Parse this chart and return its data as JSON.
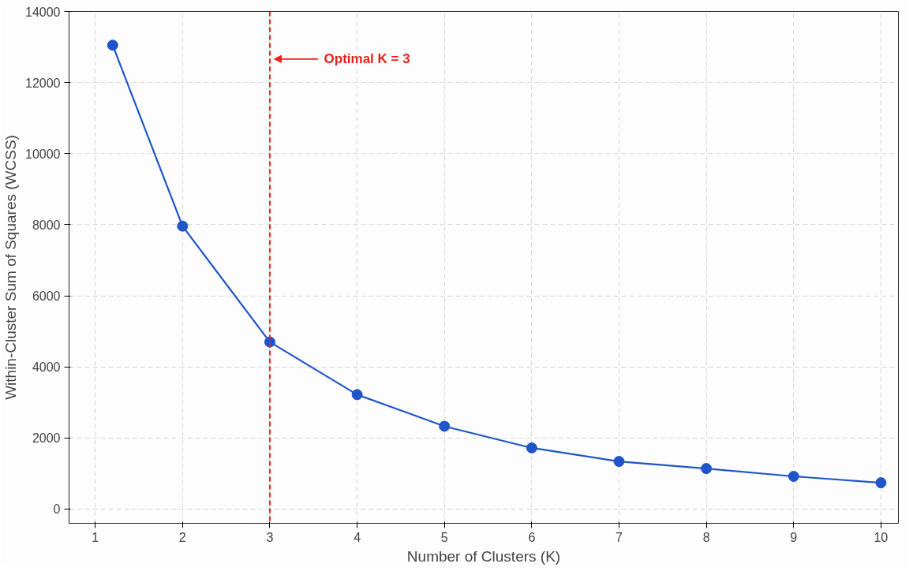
{
  "chart_data": {
    "type": "line",
    "xlabel": "Number of Clusters (K)",
    "ylabel": "Within-Cluster Sum of Squares (WCSS)",
    "series": [
      {
        "color": "#1f55c8",
        "x": [
          1.2,
          2,
          3,
          4,
          5,
          6,
          7,
          8,
          9,
          10
        ],
        "values": [
          13050,
          7960,
          4700,
          3220,
          2330,
          1720,
          1340,
          1140,
          920,
          740
        ]
      }
    ],
    "marker": "circle",
    "line_style": "solid",
    "xlim": [
      0.7,
      10.2
    ],
    "ylim": [
      -400,
      14000
    ],
    "xticks": [
      1,
      2,
      3,
      4,
      5,
      6,
      7,
      8,
      9,
      10
    ],
    "yticks": [
      0,
      2000,
      4000,
      6000,
      8000,
      10000,
      12000,
      14000
    ],
    "grid": true,
    "ref_lines": [
      {
        "axis": "x",
        "value": 3,
        "label": "Optimal K = 3",
        "color": "#e8211b",
        "line_style": "dashed"
      }
    ]
  }
}
